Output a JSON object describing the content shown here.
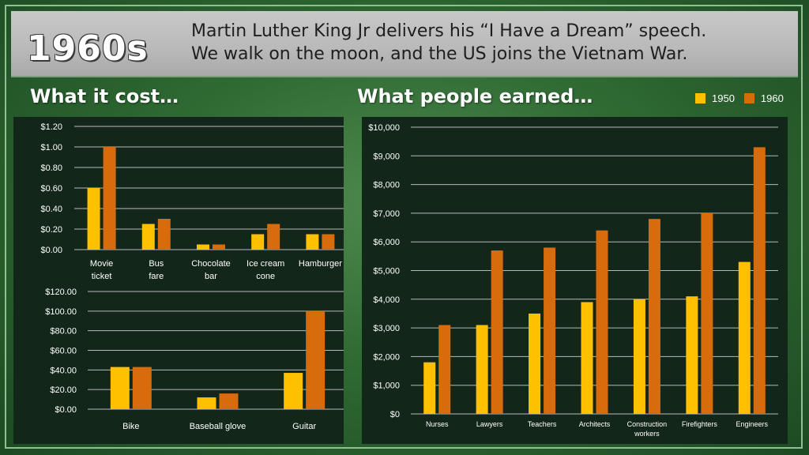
{
  "header": {
    "era": "1960s",
    "headline_line1": "Martin Luther King Jr delivers his “I Have a Dream” speech.",
    "headline_line2": "We walk on the moon, and the US joins the Vietnam War."
  },
  "sections": {
    "cost_title": "What it cost…",
    "earned_title": "What people earned…"
  },
  "legend": {
    "items": [
      {
        "label": "1950",
        "color": "#ffc000"
      },
      {
        "label": "1960",
        "color": "#d86c0c"
      }
    ]
  },
  "chart_data": [
    {
      "type": "bar",
      "categories": [
        "Movie ticket",
        "Bus fare",
        "Chocolate bar",
        "Ice cream cone",
        "Hamburger"
      ],
      "series": [
        {
          "name": "1950",
          "values": [
            0.6,
            0.25,
            0.05,
            0.15,
            0.15
          ]
        },
        {
          "name": "1960",
          "values": [
            1.0,
            0.3,
            0.05,
            0.25,
            0.15
          ]
        }
      ],
      "yticks": [
        "$0.00",
        "$0.20",
        "$0.40",
        "$0.60",
        "$0.80",
        "$1.00",
        "$1.20"
      ],
      "ylim": [
        0,
        1.2
      ],
      "grid": true
    },
    {
      "type": "bar",
      "categories": [
        "Bike",
        "Baseball glove",
        "Guitar"
      ],
      "series": [
        {
          "name": "1950",
          "values": [
            43,
            12,
            37
          ]
        },
        {
          "name": "1960",
          "values": [
            43,
            16,
            100
          ]
        }
      ],
      "yticks": [
        "$0.00",
        "$20.00",
        "$40.00",
        "$60.00",
        "$80.00",
        "$100.00",
        "$120.00"
      ],
      "ylim": [
        0,
        120
      ],
      "grid": true
    },
    {
      "type": "bar",
      "categories": [
        "Nurses",
        "Lawyers",
        "Teachers",
        "Architects",
        "Construction workers",
        "Firefighters",
        "Engineers"
      ],
      "series": [
        {
          "name": "1950",
          "values": [
            1800,
            3100,
            3500,
            3900,
            4000,
            4100,
            5300
          ]
        },
        {
          "name": "1960",
          "values": [
            3100,
            5700,
            5800,
            6400,
            6800,
            7000,
            9300
          ]
        }
      ],
      "yticks": [
        "$0",
        "$1,000",
        "$2,000",
        "$3,000",
        "$4,000",
        "$5,000",
        "$6,000",
        "$7,000",
        "$8,000",
        "$9,000",
        "$10,000"
      ],
      "ylim": [
        0,
        10000
      ],
      "grid": true
    }
  ]
}
